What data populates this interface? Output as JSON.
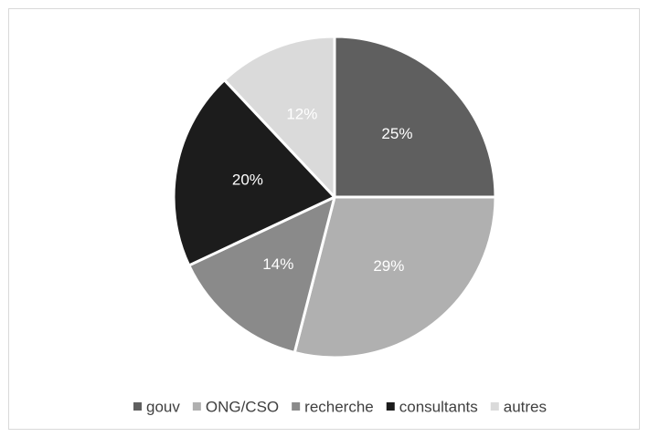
{
  "chart_data": {
    "type": "pie",
    "categories": [
      "gouv",
      "ONG/CSO",
      "recherche",
      "consultants",
      "autres"
    ],
    "values": [
      25,
      29,
      14,
      20,
      12
    ],
    "value_labels": [
      "25%",
      "29%",
      "14%",
      "20%",
      "12%"
    ],
    "colors": [
      "#5f5f5f",
      "#b0b0b0",
      "#8a8a8a",
      "#1c1c1c",
      "#dadada"
    ],
    "legend": "bottom"
  }
}
